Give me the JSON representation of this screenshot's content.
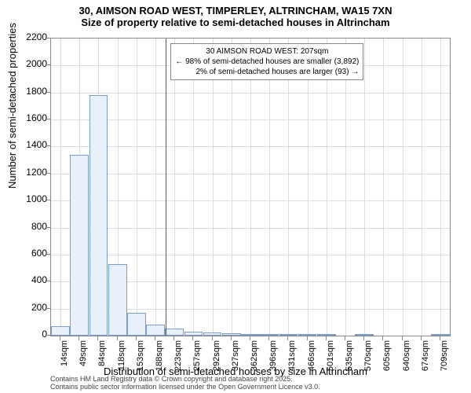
{
  "chart": {
    "type": "histogram",
    "title_main": "30, AIMSON ROAD WEST, TIMPERLEY, ALTRINCHAM, WA15 7XN",
    "title_sub": "Size of property relative to semi-detached houses in Altrincham",
    "y_axis_label": "Number of semi-detached properties",
    "x_axis_label": "Distribution of semi-detached houses by size in Altrincham",
    "background_color": "#ffffff",
    "border_color": "#888888",
    "grid_color": "#dddddd",
    "bar_fill": "#e8f0fa",
    "bar_border": "#7a9cc6",
    "marker_color": "#c82828",
    "ylim": [
      0,
      2200
    ],
    "y_ticks": [
      0,
      200,
      400,
      600,
      800,
      1000,
      1200,
      1400,
      1600,
      1800,
      2000,
      2200
    ],
    "x_ticks": [
      "14sqm",
      "49sqm",
      "84sqm",
      "118sqm",
      "153sqm",
      "188sqm",
      "223sqm",
      "257sqm",
      "292sqm",
      "327sqm",
      "362sqm",
      "396sqm",
      "431sqm",
      "466sqm",
      "501sqm",
      "535sqm",
      "570sqm",
      "605sqm",
      "640sqm",
      "674sqm",
      "709sqm"
    ],
    "bars": [
      70,
      1340,
      1780,
      530,
      170,
      80,
      50,
      32,
      22,
      16,
      10,
      4,
      4,
      2,
      2,
      0,
      2,
      0,
      0,
      0,
      2
    ],
    "marker_x_category_index": 5.55,
    "info_box": {
      "line1": "30 AIMSON ROAD WEST: 207sqm",
      "line2": "← 98% of semi-detached houses are smaller (3,892)",
      "line3": "2% of semi-detached houses are larger (93) →"
    },
    "attribution_line1": "Contains HM Land Registry data © Crown copyright and database right 2025.",
    "attribution_line2": "Contains public sector information licensed under the Open Government Licence v3.0.",
    "title_fontsize": 13,
    "label_fontsize": 13,
    "tick_fontsize": 11
  }
}
